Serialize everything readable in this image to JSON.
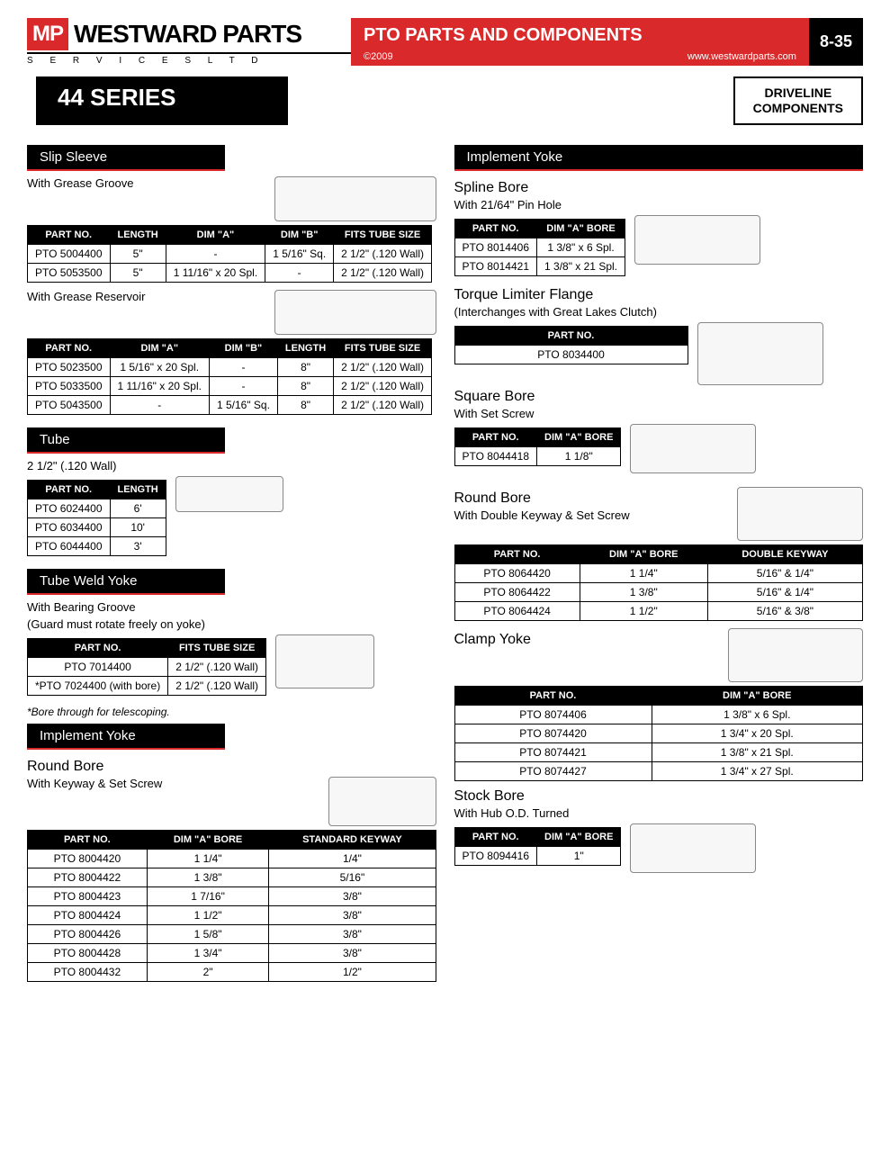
{
  "header": {
    "logo_red": "MP",
    "logo_main": "WESTWARD PARTS",
    "logo_sub": "S E R V I C E S   L T D",
    "title": "PTO PARTS AND COMPONENTS",
    "copyright": "©2009",
    "url": "www.westwardparts.com",
    "pagenum": "8-35"
  },
  "series": {
    "title": "44 SERIES",
    "label_line1": "DRIVELINE",
    "label_line2": "COMPONENTS"
  },
  "slip_sleeve": {
    "bar": "Slip Sleeve",
    "sub1": "With Grease Groove",
    "t1_headers": [
      "PART NO.",
      "LENGTH",
      "DIM \"A\"",
      "DIM \"B\"",
      "FITS TUBE SIZE"
    ],
    "t1_rows": [
      [
        "PTO 5004400",
        "5\"",
        "-",
        "1 5/16\" Sq.",
        "2 1/2\" (.120 Wall)"
      ],
      [
        "PTO 5053500",
        "5\"",
        "1 11/16\" x 20 Spl.",
        "-",
        "2 1/2\" (.120 Wall)"
      ]
    ],
    "sub2": "With Grease Reservoir",
    "t2_headers": [
      "PART NO.",
      "DIM \"A\"",
      "DIM \"B\"",
      "LENGTH",
      "FITS TUBE SIZE"
    ],
    "t2_rows": [
      [
        "PTO 5023500",
        "1 5/16\" x 20 Spl.",
        "-",
        "8\"",
        "2 1/2\" (.120 Wall)"
      ],
      [
        "PTO 5033500",
        "1 11/16\" x 20 Spl.",
        "-",
        "8\"",
        "2 1/2\" (.120 Wall)"
      ],
      [
        "PTO 5043500",
        "-",
        "1 5/16\" Sq.",
        "8\"",
        "2 1/2\" (.120 Wall)"
      ]
    ]
  },
  "tube": {
    "bar": "Tube",
    "sub": "2 1/2\" (.120 Wall)",
    "headers": [
      "PART NO.",
      "LENGTH"
    ],
    "rows": [
      [
        "PTO 6024400",
        "6'"
      ],
      [
        "PTO 6034400",
        "10'"
      ],
      [
        "PTO 6044400",
        "3'"
      ]
    ]
  },
  "tube_weld_yoke": {
    "bar": "Tube Weld Yoke",
    "sub1": "With Bearing Groove",
    "sub2": "(Guard must rotate freely on yoke)",
    "headers": [
      "PART NO.",
      "FITS TUBE SIZE"
    ],
    "rows": [
      [
        "PTO 7014400",
        "2 1/2\" (.120 Wall)"
      ],
      [
        "*PTO 7024400 (with bore)",
        "2 1/2\" (.120 Wall)"
      ]
    ],
    "note": "*Bore through for telescoping."
  },
  "impl_yoke_left": {
    "bar": "Implement Yoke",
    "sub1": "Round Bore",
    "sub2": "With Keyway & Set Screw",
    "headers": [
      "PART NO.",
      "DIM \"A\" BORE",
      "STANDARD KEYWAY"
    ],
    "rows": [
      [
        "PTO 8004420",
        "1 1/4\"",
        "1/4\""
      ],
      [
        "PTO 8004422",
        "1 3/8\"",
        "5/16\""
      ],
      [
        "PTO 8004423",
        "1 7/16\"",
        "3/8\""
      ],
      [
        "PTO 8004424",
        "1 1/2\"",
        "3/8\""
      ],
      [
        "PTO 8004426",
        "1 5/8\"",
        "3/8\""
      ],
      [
        "PTO 8004428",
        "1 3/4\"",
        "3/8\""
      ],
      [
        "PTO 8004432",
        "2\"",
        "1/2\""
      ]
    ]
  },
  "impl_yoke_right": {
    "bar": "Implement Yoke",
    "spline": {
      "sub1": "Spline Bore",
      "sub2": "With 21/64\" Pin Hole",
      "headers": [
        "PART NO.",
        "DIM \"A\" BORE"
      ],
      "rows": [
        [
          "PTO 8014406",
          "1 3/8\" x 6 Spl."
        ],
        [
          "PTO 8014421",
          "1 3/8\" x 21 Spl."
        ]
      ]
    },
    "torque": {
      "sub1": "Torque Limiter Flange",
      "sub2": "(Interchanges with Great Lakes Clutch)",
      "headers": [
        "PART NO."
      ],
      "rows": [
        [
          "PTO 8034400"
        ]
      ]
    },
    "square": {
      "sub1": "Square Bore",
      "sub2": "With Set Screw",
      "headers": [
        "PART NO.",
        "DIM \"A\" BORE"
      ],
      "rows": [
        [
          "PTO 8044418",
          "1 1/8\""
        ]
      ]
    },
    "round": {
      "sub1": "Round Bore",
      "sub2": "With Double Keyway & Set Screw",
      "headers": [
        "PART NO.",
        "DIM \"A\" BORE",
        "DOUBLE KEYWAY"
      ],
      "rows": [
        [
          "PTO 8064420",
          "1 1/4\"",
          "5/16\" & 1/4\""
        ],
        [
          "PTO 8064422",
          "1 3/8\"",
          "5/16\" & 1/4\""
        ],
        [
          "PTO 8064424",
          "1 1/2\"",
          "5/16\" & 3/8\""
        ]
      ]
    },
    "clamp": {
      "sub1": "Clamp Yoke",
      "headers": [
        "PART NO.",
        "DIM \"A\" BORE"
      ],
      "rows": [
        [
          "PTO 8074406",
          "1 3/8\" x 6 Spl."
        ],
        [
          "PTO 8074420",
          "1 3/4\" x 20 Spl."
        ],
        [
          "PTO 8074421",
          "1 3/8\" x 21 Spl."
        ],
        [
          "PTO 8074427",
          "1 3/4\" x 27 Spl."
        ]
      ]
    },
    "stock": {
      "sub1": "Stock Bore",
      "sub2": "With Hub O.D. Turned",
      "headers": [
        "PART NO.",
        "DIM \"A\" BORE"
      ],
      "rows": [
        [
          "PTO 8094416",
          "1\""
        ]
      ]
    }
  }
}
